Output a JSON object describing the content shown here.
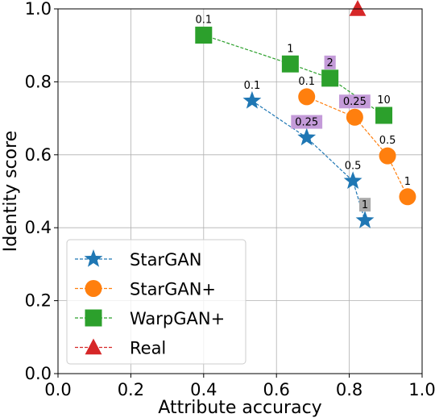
{
  "chart_data": {
    "type": "line",
    "xlabel": "Attribute accuracy",
    "ylabel": "Identity score",
    "xlim": [
      0.0,
      1.0
    ],
    "ylim": [
      0.0,
      1.0
    ],
    "xticks": [
      "0.0",
      "0.2",
      "0.4",
      "0.6",
      "0.8",
      "1.0"
    ],
    "yticks": [
      "0.0",
      "0.2",
      "0.4",
      "0.6",
      "0.8",
      "1.0"
    ],
    "grid": true,
    "legend_position": "lower-left",
    "series": [
      {
        "name": "StarGAN",
        "marker": "star",
        "color": "#1f77b4",
        "points": [
          {
            "x": 0.533,
            "y": 0.748,
            "label": "0.1",
            "highlight": ""
          },
          {
            "x": 0.683,
            "y": 0.647,
            "label": "0.25",
            "highlight": "#c49bd9"
          },
          {
            "x": 0.81,
            "y": 0.528,
            "label": "0.5",
            "highlight": ""
          },
          {
            "x": 0.843,
            "y": 0.42,
            "label": "1",
            "highlight": "#aaaaaa"
          }
        ]
      },
      {
        "name": "StarGAN+",
        "marker": "circle",
        "color": "#ff7f0e",
        "points": [
          {
            "x": 0.683,
            "y": 0.759,
            "label": "0.1",
            "highlight": ""
          },
          {
            "x": 0.815,
            "y": 0.703,
            "label": "0.25",
            "highlight": "#c49bd9"
          },
          {
            "x": 0.905,
            "y": 0.597,
            "label": "0.5",
            "highlight": ""
          },
          {
            "x": 0.96,
            "y": 0.485,
            "label": "1",
            "highlight": ""
          }
        ]
      },
      {
        "name": "WarpGAN+",
        "marker": "square",
        "color": "#2ca02c",
        "points": [
          {
            "x": 0.4,
            "y": 0.928,
            "label": "0.1",
            "highlight": ""
          },
          {
            "x": 0.638,
            "y": 0.849,
            "label": "1",
            "highlight": ""
          },
          {
            "x": 0.747,
            "y": 0.81,
            "label": "2",
            "highlight": "#c49bd9"
          },
          {
            "x": 0.895,
            "y": 0.708,
            "label": "10",
            "highlight": ""
          }
        ]
      },
      {
        "name": "Real",
        "marker": "triangle",
        "color": "#d62728",
        "points": [
          {
            "x": 0.823,
            "y": 1.0,
            "label": "",
            "highlight": ""
          }
        ]
      }
    ]
  }
}
